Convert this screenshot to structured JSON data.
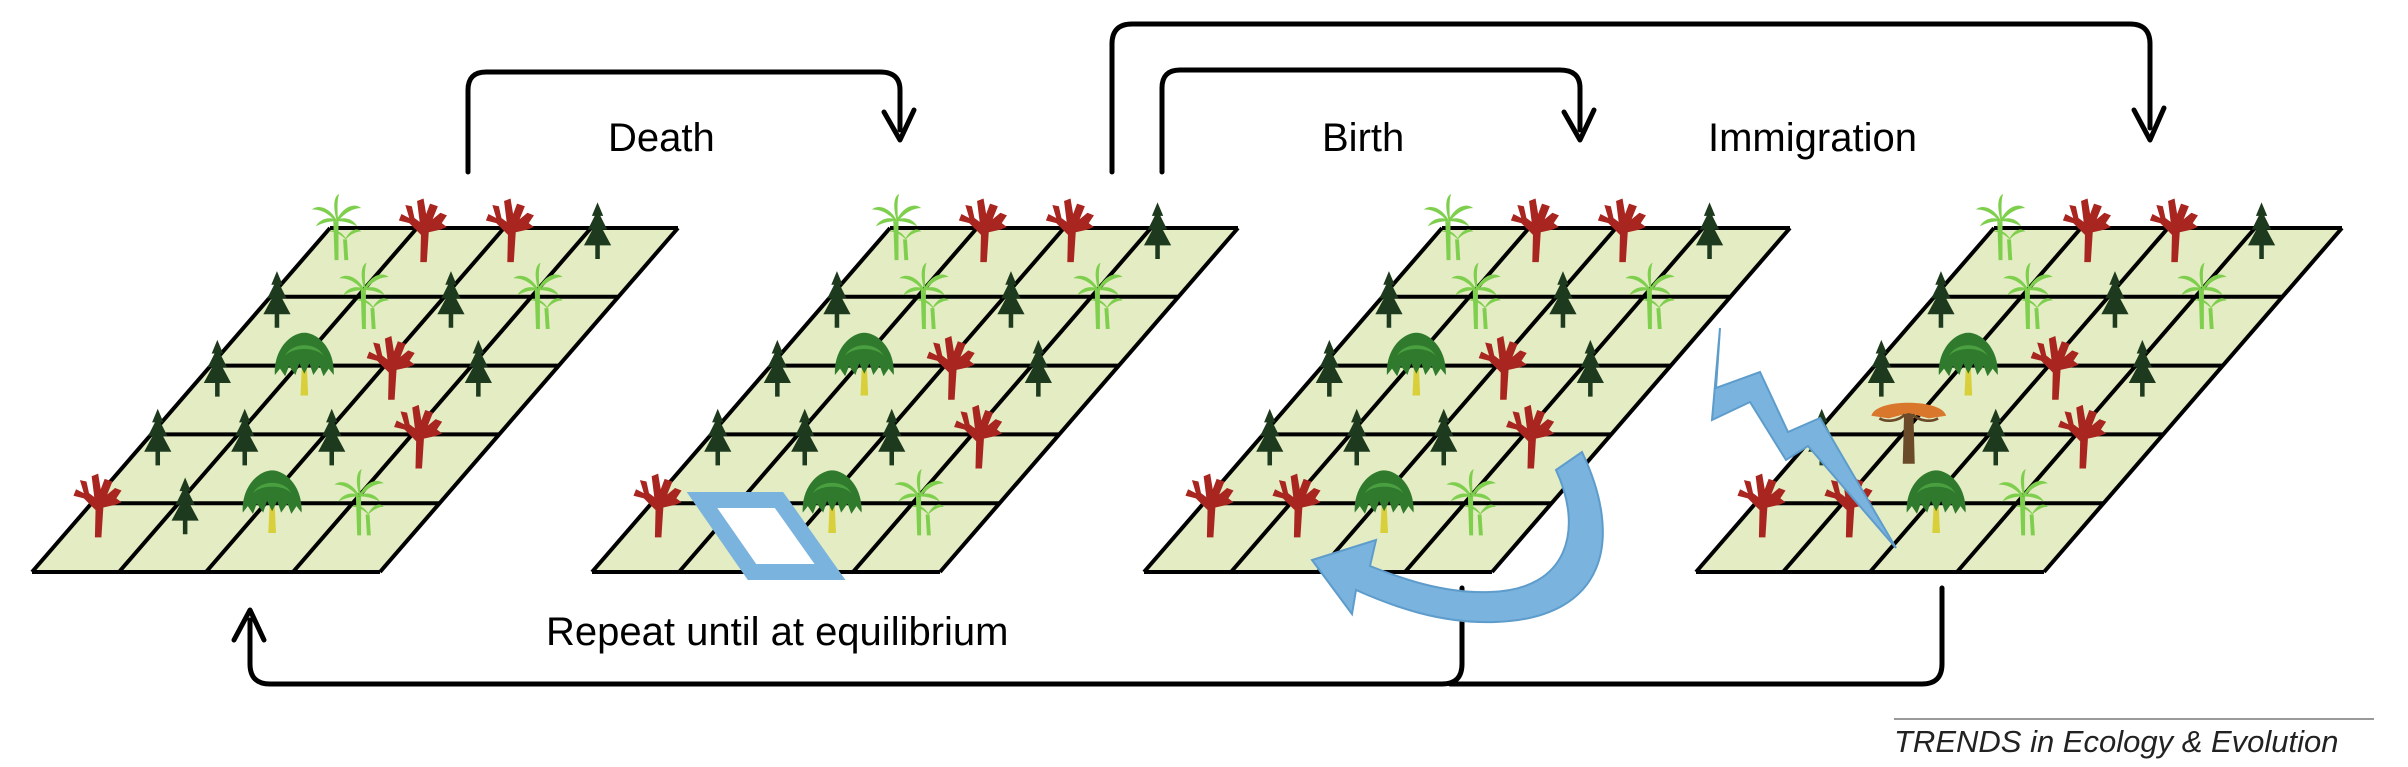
{
  "labels": {
    "death": "Death",
    "birth": "Birth",
    "immigration": "Immigration",
    "repeat": "Repeat until at equilibrium"
  },
  "credit": "TRENDS in Ecology & Evolution",
  "colors": {
    "cell": "#e3ecc2",
    "grid": "#000000",
    "arrow": "#000000",
    "highlight": "#7ab3de",
    "conifer": "#1e3a1e",
    "redTree": "#a8261f",
    "palm": "#7fcf4e",
    "willowTop": "#2f7a2c",
    "willowTrunk": "#d8cf3a",
    "immigrant": "#d9782c"
  },
  "icons": [
    "conifer-icon",
    "red-tree-icon",
    "palm-icon",
    "willow-icon",
    "immigrant-tree-icon"
  ],
  "panels": [
    {
      "grid": [
        [
          "palm",
          "red",
          "red",
          "conifer"
        ],
        [
          "conifer",
          "palm",
          "conifer",
          "palm"
        ],
        [
          "conifer",
          "willow",
          "red",
          "conifer"
        ],
        [
          "conifer",
          "conifer",
          "conifer",
          "red"
        ],
        [
          "red",
          "conifer",
          "willow",
          "palm"
        ]
      ]
    },
    {
      "grid": [
        [
          "palm",
          "red",
          "red",
          "conifer"
        ],
        [
          "conifer",
          "palm",
          "conifer",
          "palm"
        ],
        [
          "conifer",
          "willow",
          "red",
          "conifer"
        ],
        [
          "conifer",
          "conifer",
          "conifer",
          "red"
        ],
        [
          "red",
          "empty",
          "willow",
          "palm"
        ]
      ]
    },
    {
      "grid": [
        [
          "palm",
          "red",
          "red",
          "conifer"
        ],
        [
          "conifer",
          "palm",
          "conifer",
          "palm"
        ],
        [
          "conifer",
          "willow",
          "red",
          "conifer"
        ],
        [
          "conifer",
          "conifer",
          "conifer",
          "red"
        ],
        [
          "red",
          "red",
          "willow",
          "palm"
        ]
      ]
    },
    {
      "grid": [
        [
          "palm",
          "red",
          "red",
          "conifer"
        ],
        [
          "conifer",
          "palm",
          "conifer",
          "palm"
        ],
        [
          "conifer",
          "willow",
          "red",
          "conifer"
        ],
        [
          "conifer",
          "immigrant",
          "conifer",
          "red"
        ],
        [
          "red",
          "red",
          "willow",
          "palm"
        ]
      ]
    }
  ]
}
